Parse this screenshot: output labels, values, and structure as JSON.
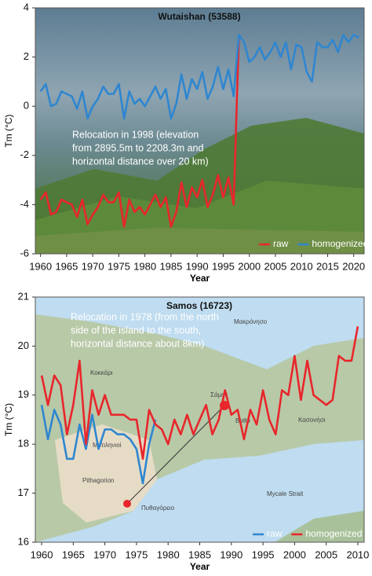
{
  "chart_data": [
    {
      "type": "line",
      "title": "Wutaishan (53588)",
      "xlabel": "Year",
      "ylabel": "Tm (°C)",
      "x": [
        1960,
        1961,
        1962,
        1963,
        1964,
        1965,
        1966,
        1967,
        1968,
        1969,
        1970,
        1971,
        1972,
        1973,
        1974,
        1975,
        1976,
        1977,
        1978,
        1979,
        1980,
        1981,
        1982,
        1983,
        1984,
        1985,
        1986,
        1987,
        1988,
        1989,
        1990,
        1991,
        1992,
        1993,
        1994,
        1995,
        1996,
        1997,
        1998,
        1999,
        2000,
        2001,
        2002,
        2003,
        2004,
        2005,
        2006,
        2007,
        2008,
        2009,
        2010,
        2011,
        2012,
        2013,
        2014,
        2015,
        2016,
        2017,
        2018,
        2019,
        2020,
        2021
      ],
      "series": [
        {
          "name": "raw",
          "color": "#e8262b",
          "values": [
            -3.8,
            -3.5,
            -4.4,
            -4.3,
            -3.8,
            -3.9,
            -4.0,
            -4.5,
            -3.8,
            -4.8,
            -4.4,
            -4.1,
            -3.6,
            -3.9,
            -3.9,
            -3.5,
            -4.9,
            -3.8,
            -4.3,
            -4.1,
            -4.4,
            -4.0,
            -3.6,
            -4.1,
            -3.7,
            -4.9,
            -4.3,
            -3.1,
            -4.1,
            -3.3,
            -3.7,
            -3.0,
            -4.1,
            -3.6,
            -2.8,
            -3.7,
            -2.9,
            -4.0,
            2.9,
            null,
            null,
            null,
            null,
            null,
            null,
            null,
            null,
            null,
            null,
            null,
            null,
            null,
            null,
            null,
            null,
            null,
            null,
            null,
            null,
            null,
            null,
            null
          ]
        },
        {
          "name": "homogenized",
          "color": "#2f86d0",
          "values": [
            0.6,
            0.9,
            0.0,
            0.1,
            0.6,
            0.5,
            0.4,
            -0.1,
            0.6,
            -0.5,
            0.0,
            0.3,
            0.8,
            0.5,
            0.5,
            0.9,
            -0.5,
            0.6,
            0.1,
            0.3,
            0.0,
            0.4,
            0.8,
            0.3,
            0.7,
            -0.5,
            0.1,
            1.3,
            0.3,
            1.1,
            0.7,
            1.4,
            0.3,
            0.8,
            1.6,
            0.7,
            1.5,
            0.4,
            2.9,
            2.6,
            1.8,
            2.0,
            2.4,
            1.9,
            2.2,
            2.6,
            2.0,
            2.6,
            1.5,
            2.5,
            2.4,
            1.4,
            1.0,
            2.6,
            2.4,
            2.4,
            2.7,
            2.2,
            2.9,
            2.6,
            2.9,
            2.8
          ]
        }
      ],
      "xlim": [
        1959,
        2022
      ],
      "xticks": [
        1960,
        1965,
        1970,
        1975,
        1980,
        1985,
        1990,
        1995,
        2000,
        2005,
        2010,
        2015,
        2020
      ],
      "ylim": [
        -6,
        4
      ],
      "yticks": [
        -6,
        -4,
        -2,
        0,
        2,
        4
      ],
      "legend": "lower right",
      "annotation": [
        "Relocation in 1998 (elevation",
        "from 2895.5m to 2208.3m and",
        "horizontal distance over 20 km)"
      ]
    },
    {
      "type": "line",
      "title": "Samos (16723)",
      "xlabel": "Year",
      "ylabel": "Tm (°C)",
      "x": [
        1960,
        1961,
        1962,
        1963,
        1964,
        1965,
        1966,
        1967,
        1968,
        1969,
        1970,
        1971,
        1972,
        1973,
        1974,
        1975,
        1976,
        1977,
        1978,
        1979,
        1980,
        1981,
        1982,
        1983,
        1984,
        1985,
        1986,
        1987,
        1988,
        1989,
        1990,
        1991,
        1992,
        1993,
        1994,
        1995,
        1996,
        1997,
        1998,
        1999,
        2000,
        2001,
        2002,
        2003,
        2004,
        2005,
        2006,
        2007,
        2008,
        2009,
        2010
      ],
      "series": [
        {
          "name": "raw",
          "color": "#2f86d0",
          "values": [
            18.8,
            18.1,
            18.7,
            18.4,
            17.7,
            17.7,
            18.4,
            17.9,
            18.6,
            17.9,
            18.3,
            18.3,
            18.2,
            18.2,
            18.1,
            17.9,
            17.2,
            18.0,
            18.5,
            null,
            null,
            null,
            null,
            null,
            null,
            null,
            null,
            null,
            null,
            null,
            null,
            null,
            null,
            null,
            null,
            null,
            null,
            null,
            null,
            null,
            null,
            null,
            null,
            null,
            null,
            null,
            null,
            null,
            null,
            null,
            null
          ]
        },
        {
          "name": "homogenized",
          "color": "#e8262b",
          "values": [
            19.4,
            18.8,
            19.4,
            19.2,
            18.2,
            18.8,
            19.7,
            18.0,
            19.1,
            18.6,
            19.0,
            18.6,
            18.6,
            18.6,
            18.5,
            18.5,
            17.7,
            18.7,
            18.4,
            18.3,
            18.0,
            18.5,
            18.2,
            18.6,
            18.2,
            18.5,
            18.8,
            18.2,
            18.5,
            19.1,
            18.6,
            18.7,
            18.1,
            18.7,
            18.4,
            19.1,
            18.5,
            18.2,
            19.1,
            19.0,
            19.8,
            18.9,
            19.7,
            19.0,
            18.9,
            18.8,
            18.9,
            19.8,
            19.7,
            19.7,
            20.4
          ]
        }
      ],
      "xlim": [
        1959,
        2011
      ],
      "xticks": [
        1960,
        1965,
        1970,
        1975,
        1980,
        1985,
        1990,
        1995,
        2000,
        2005,
        2010
      ],
      "ylim": [
        16,
        21
      ],
      "yticks": [
        16,
        17,
        18,
        19,
        20,
        21
      ],
      "legend": "lower right",
      "annotation": [
        "Relocation in 1978 (from the north",
        "side of the island to the south,",
        "horizontal distance about 8km)"
      ],
      "map_labels": [
        "Κοκκάρι",
        "Μακρόνησο",
        "Σάμος",
        "Βαθύ",
        "Μυτιληνιοί",
        "Pithagorion",
        "Πυθαγόρειο",
        "Mycale Strait",
        "Κασονήσι"
      ]
    }
  ]
}
